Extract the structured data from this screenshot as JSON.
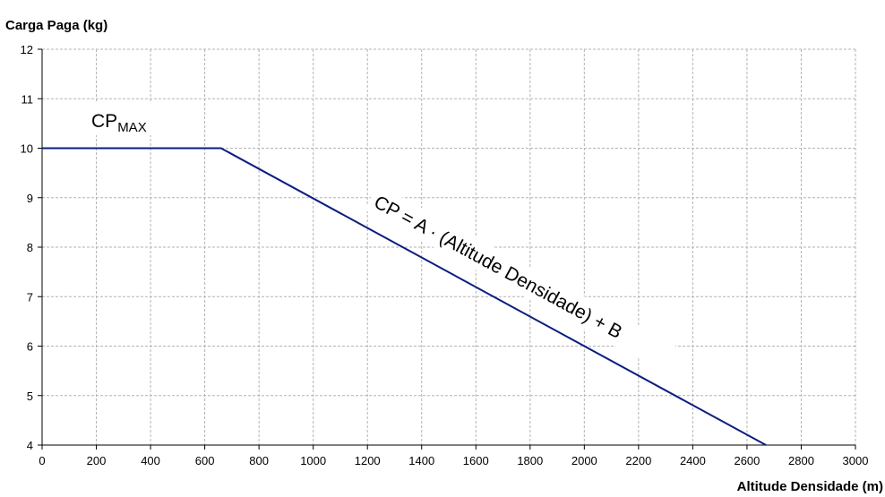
{
  "chart_data": {
    "type": "line",
    "ylabel": "Carga Paga (kg)",
    "xlabel": "Altitude Densidade (m)",
    "xlim": [
      0,
      3000
    ],
    "ylim": [
      4,
      12
    ],
    "xticks": [
      0,
      200,
      400,
      600,
      800,
      1000,
      1200,
      1400,
      1600,
      1800,
      2000,
      2200,
      2400,
      2600,
      2800,
      3000
    ],
    "yticks": [
      4,
      5,
      6,
      7,
      8,
      9,
      10,
      11,
      12
    ],
    "grid": true,
    "series": [
      {
        "x": [
          0,
          660,
          2670
        ],
        "y": [
          10,
          10,
          4
        ],
        "color": "#0b1e7d"
      }
    ],
    "annotations": {
      "cpmax_main": "CP",
      "cpmax_sub": "MAX",
      "formula": "CP = A · (Altitude Densidade) + B"
    }
  }
}
